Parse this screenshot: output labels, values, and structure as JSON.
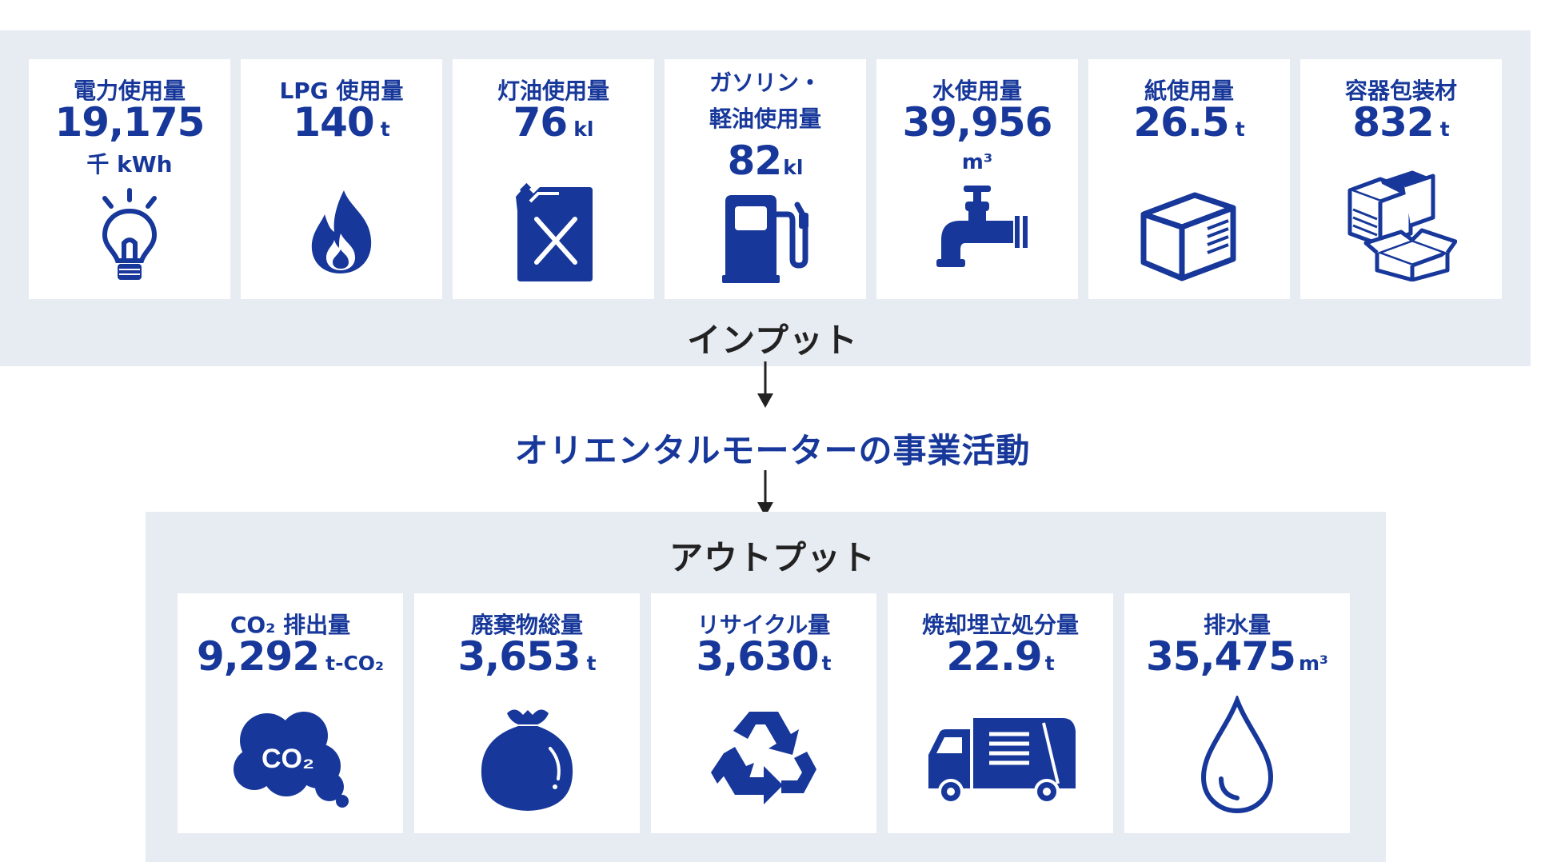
{
  "input": {
    "title": "インプット",
    "items": [
      {
        "label": "電力使用量",
        "value": "19,175",
        "unit": "千 kWh",
        "icon": "lightbulb-icon"
      },
      {
        "label": "LPG 使用量",
        "value": "140",
        "unit": "t",
        "icon": "flame-icon"
      },
      {
        "label": "灯油使用量",
        "value": "76",
        "unit": "kl",
        "icon": "fuel-can-icon"
      },
      {
        "label_line1": "ガソリン・",
        "label_line2": "軽油使用量",
        "value": "82",
        "unit": "kl",
        "icon": "gas-pump-icon"
      },
      {
        "label": "水使用量",
        "value": "39,956",
        "unit": "m³",
        "icon": "water-faucet-icon"
      },
      {
        "label": "紙使用量",
        "value": "26.5",
        "unit": "t",
        "icon": "paper-box-icon"
      },
      {
        "label": "容器包装材",
        "value": "832",
        "unit": "t",
        "icon": "packaging-boxes-icon"
      }
    ]
  },
  "activity": "オリエンタルモーターの事業活動",
  "output": {
    "title": "アウトプット",
    "items": [
      {
        "label": "CO₂ 排出量",
        "value": "9,292",
        "unit": "t-CO₂",
        "icon": "co2-cloud-icon",
        "icon_text": "CO₂"
      },
      {
        "label": "廃棄物総量",
        "value": "3,653",
        "unit": "t",
        "icon": "garbage-bag-icon"
      },
      {
        "label": "リサイクル量",
        "value": "3,630",
        "unit": "t",
        "icon": "recycle-icon"
      },
      {
        "label": "焼却埋立処分量",
        "value": "22.9",
        "unit": "t",
        "icon": "garbage-truck-icon"
      },
      {
        "label": "排水量",
        "value": "35,475",
        "unit": "m³",
        "icon": "water-drop-icon"
      }
    ]
  },
  "colors": {
    "accent": "#17389a",
    "panel_bg": "#e7ebf2",
    "card_bg": "#ffffff",
    "heading": "#222222"
  }
}
